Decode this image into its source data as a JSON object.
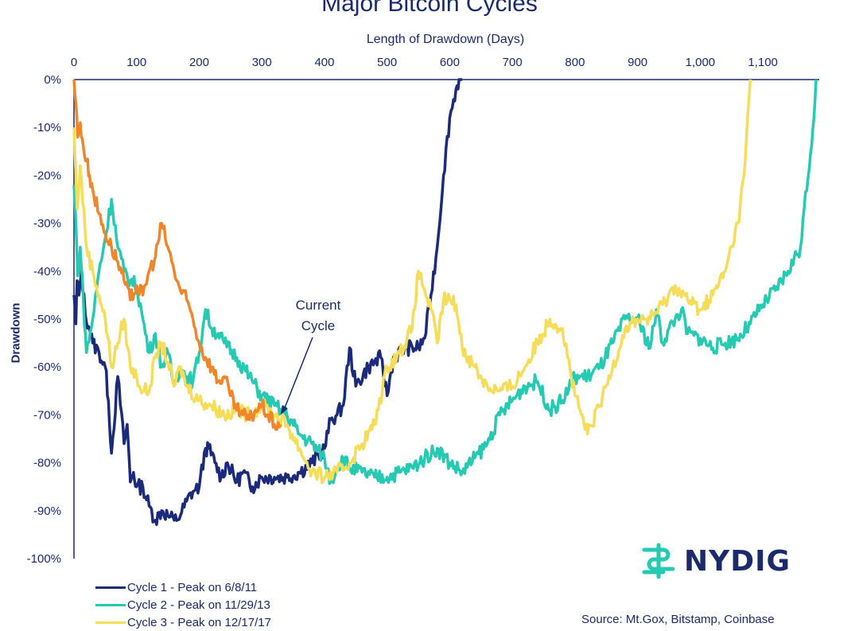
{
  "chart_data": {
    "type": "line",
    "title": "Major Bitcoin Cycles",
    "xlabel": "Length of Drawdown (Days)",
    "ylabel": "Drawdown",
    "xlim": [
      0,
      1190
    ],
    "ylim": [
      -100,
      0
    ],
    "x_ticks": [
      0,
      100,
      200,
      300,
      400,
      500,
      600,
      700,
      800,
      900,
      1000,
      1100
    ],
    "x_tick_labels": [
      "0",
      "100",
      "200",
      "300",
      "400",
      "500",
      "600",
      "700",
      "800",
      "900",
      "1,000",
      "1,100"
    ],
    "y_ticks": [
      0,
      -10,
      -20,
      -30,
      -40,
      -50,
      -60,
      -70,
      -80,
      -90,
      -100
    ],
    "y_tick_labels": [
      "0%",
      "-10%",
      "-20%",
      "-30%",
      "-40%",
      "-50%",
      "-60%",
      "-70%",
      "-80%",
      "-90%",
      "-100%"
    ],
    "grid": false,
    "legend_position": "bottom-left",
    "annotations": [
      {
        "text_lines": [
          "Current",
          "Cycle"
        ],
        "points_to": [
          330,
          -70
        ]
      }
    ],
    "series": [
      {
        "name": "Cycle 1 - Peak on 6/8/11",
        "color": "#1b2a7a",
        "x": [
          0,
          3,
          5,
          8,
          12,
          18,
          25,
          30,
          40,
          50,
          55,
          60,
          70,
          80,
          85,
          90,
          95,
          100,
          110,
          120,
          130,
          140,
          150,
          160,
          170,
          180,
          190,
          200,
          210,
          215,
          225,
          235,
          245,
          260,
          270,
          285,
          300,
          320,
          340,
          360,
          380,
          400,
          410,
          420,
          430,
          440,
          450,
          470,
          490,
          500,
          510,
          530,
          550,
          560,
          570,
          580,
          590,
          600,
          610,
          615,
          620
        ],
        "y": [
          -45,
          -51,
          -42,
          -45,
          -40,
          -49,
          -52,
          -55,
          -57,
          -60,
          -67,
          -78,
          -62,
          -76,
          -72,
          -84,
          -82,
          -85,
          -85,
          -89,
          -92,
          -90,
          -91,
          -92,
          -91,
          -88,
          -86,
          -85,
          -77,
          -77,
          -80,
          -83,
          -80,
          -84,
          -82,
          -85,
          -83,
          -83,
          -83,
          -82,
          -80,
          -77,
          -71,
          -70,
          -68,
          -56,
          -64,
          -60,
          -58,
          -66,
          -58,
          -56,
          -56,
          -54,
          -45,
          -35,
          -20,
          -8,
          -2,
          0,
          0
        ]
      },
      {
        "name": "Cycle 2 - Peak on 11/29/13",
        "color": "#26c9b1",
        "x": [
          0,
          3,
          6,
          10,
          15,
          20,
          30,
          40,
          50,
          60,
          70,
          80,
          90,
          100,
          110,
          120,
          130,
          140,
          150,
          160,
          170,
          180,
          190,
          200,
          210,
          220,
          230,
          240,
          260,
          280,
          300,
          320,
          340,
          360,
          380,
          400,
          410,
          420,
          430,
          440,
          460,
          480,
          500,
          520,
          540,
          560,
          580,
          600,
          620,
          640,
          660,
          680,
          700,
          720,
          740,
          760,
          780,
          800,
          820,
          840,
          860,
          880,
          900,
          920,
          930,
          940,
          950,
          960,
          970,
          980,
          1000,
          1020,
          1040,
          1060,
          1080,
          1100,
          1120,
          1140,
          1160,
          1180,
          1185
        ],
        "y": [
          -22,
          -30,
          -41,
          -35,
          -46,
          -57,
          -50,
          -40,
          -33,
          -25,
          -35,
          -40,
          -42,
          -43,
          -50,
          -57,
          -53,
          -60,
          -57,
          -64,
          -60,
          -62,
          -63,
          -57,
          -48,
          -52,
          -53,
          -55,
          -58,
          -62,
          -66,
          -68,
          -70,
          -74,
          -76,
          -79,
          -84,
          -81,
          -79,
          -81,
          -82,
          -83,
          -83,
          -82,
          -81,
          -79,
          -77,
          -80,
          -82,
          -79,
          -76,
          -70,
          -67,
          -64,
          -63,
          -69,
          -67,
          -62,
          -62,
          -60,
          -55,
          -50,
          -50,
          -56,
          -48,
          -55,
          -52,
          -50,
          -48,
          -53,
          -54,
          -56,
          -55,
          -54,
          -51,
          -47,
          -44,
          -40,
          -35,
          -10,
          0
        ]
      },
      {
        "name": "Cycle 3 - Peak on 12/17/17",
        "color": "#f5dd5a",
        "x": [
          0,
          5,
          10,
          20,
          30,
          40,
          50,
          60,
          70,
          80,
          90,
          100,
          110,
          120,
          130,
          140,
          150,
          160,
          170,
          180,
          200,
          220,
          240,
          260,
          280,
          300,
          320,
          340,
          360,
          380,
          400,
          420,
          440,
          460,
          480,
          500,
          520,
          540,
          550,
          560,
          570,
          580,
          590,
          600,
          610,
          620,
          640,
          660,
          680,
          700,
          720,
          740,
          760,
          780,
          800,
          820,
          840,
          860,
          880,
          900,
          920,
          940,
          960,
          980,
          1000,
          1020,
          1040,
          1060,
          1070,
          1080
        ],
        "y": [
          -10,
          -27,
          -18,
          -35,
          -40,
          -45,
          -50,
          -60,
          -55,
          -50,
          -60,
          -62,
          -65,
          -65,
          -58,
          -55,
          -59,
          -64,
          -60,
          -64,
          -67,
          -68,
          -70,
          -69,
          -70,
          -68,
          -70,
          -72,
          -77,
          -82,
          -83,
          -82,
          -80,
          -76,
          -72,
          -60,
          -57,
          -52,
          -40,
          -44,
          -48,
          -55,
          -46,
          -46,
          -47,
          -56,
          -60,
          -64,
          -65,
          -64,
          -60,
          -55,
          -50,
          -52,
          -66,
          -74,
          -68,
          -60,
          -52,
          -50,
          -50,
          -47,
          -43,
          -46,
          -48,
          -45,
          -40,
          -30,
          -20,
          0
        ]
      },
      {
        "name": "Current Cycle",
        "color": "#f0852a",
        "x": [
          0,
          3,
          6,
          10,
          15,
          20,
          25,
          30,
          40,
          50,
          60,
          70,
          80,
          90,
          100,
          110,
          120,
          130,
          140,
          150,
          160,
          170,
          180,
          190,
          200,
          210,
          220,
          230,
          240,
          250,
          260,
          270,
          280,
          290,
          300,
          310,
          320,
          330
        ],
        "y": [
          0,
          -5,
          -12,
          -9,
          -14,
          -17,
          -20,
          -23,
          -28,
          -32,
          -35,
          -38,
          -42,
          -46,
          -43,
          -45,
          -40,
          -37,
          -30,
          -35,
          -40,
          -44,
          -46,
          -50,
          -55,
          -58,
          -60,
          -63,
          -62,
          -66,
          -69,
          -70,
          -71,
          -69,
          -68,
          -70,
          -72,
          -72
        ]
      }
    ]
  },
  "legend": [
    {
      "label": "Cycle 1 - Peak on 6/8/11",
      "color": "#1b2a7a"
    },
    {
      "label": "Cycle 2 - Peak on 11/29/13",
      "color": "#26c9b1"
    },
    {
      "label": "Cycle 3 - Peak on 12/17/17",
      "color": "#f5dd5a"
    }
  ],
  "logo": {
    "text": "NYDIG",
    "icon": "nydig-logo-icon",
    "color": "#26c9b1"
  },
  "source": "Source: Mt.Gox, Bitstamp, Coinbase"
}
